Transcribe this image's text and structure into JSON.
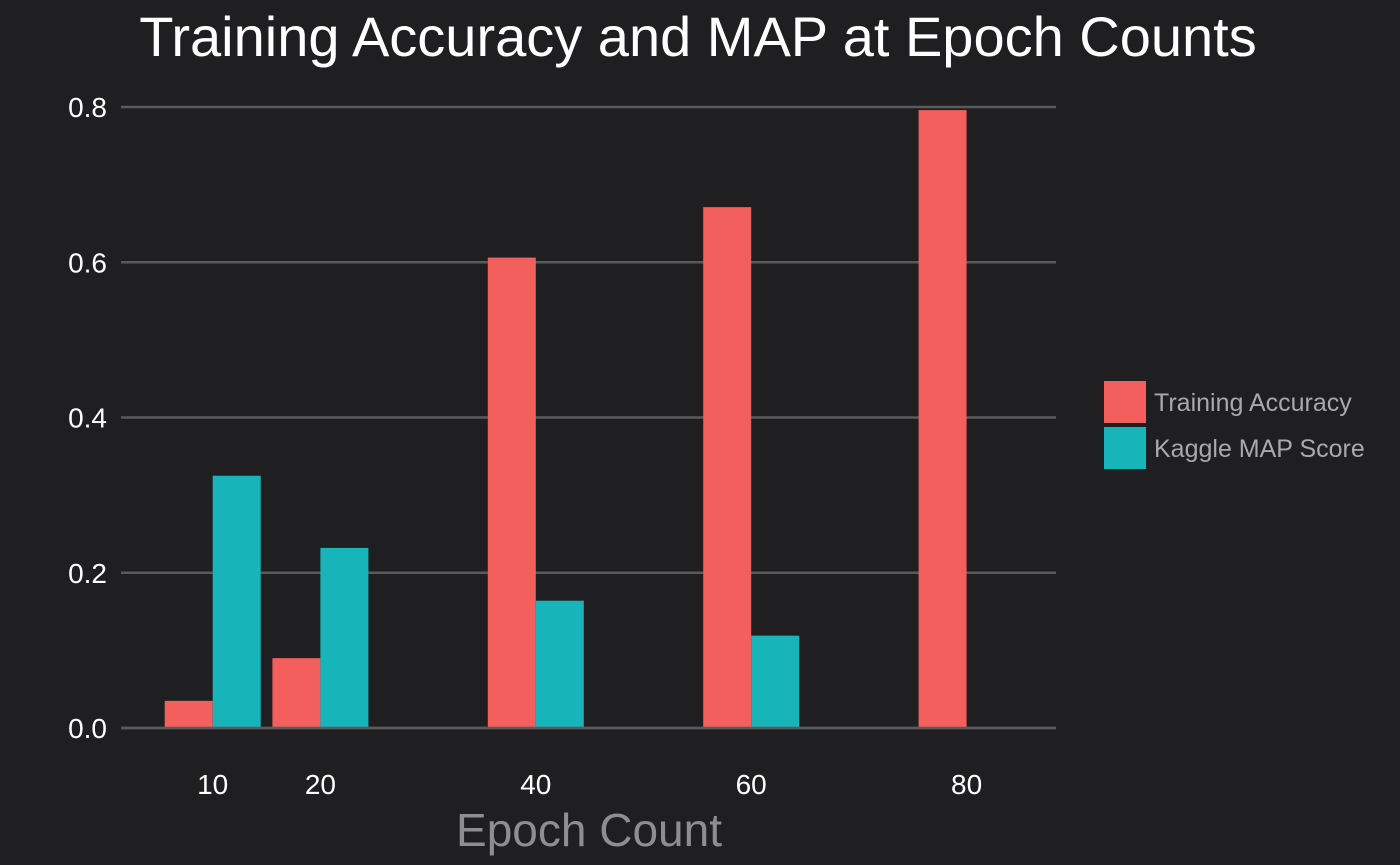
{
  "chart_data": {
    "type": "bar",
    "title": "Training Accuracy and MAP at Epoch Counts",
    "xlabel": "Epoch Count",
    "ylabel": "",
    "x": [
      10,
      20,
      40,
      60,
      80
    ],
    "x_tick_labels": [
      "10",
      "20",
      "40",
      "60",
      "80"
    ],
    "xlim": [
      0,
      90
    ],
    "ylim": [
      0,
      0.8
    ],
    "y_ticks": [
      0.0,
      0.2,
      0.4,
      0.6,
      0.8
    ],
    "y_tick_labels": [
      "0.0",
      "0.2",
      "0.4",
      "0.6",
      "0.8"
    ],
    "grid": true,
    "legend_position": "right",
    "series": [
      {
        "name": "Training Accuracy",
        "color": "#f35f5c",
        "values": [
          0.035,
          0.09,
          0.606,
          0.671,
          0.796
        ]
      },
      {
        "name": "Kaggle MAP Score",
        "color": "#17b4ba",
        "values": [
          0.325,
          0.232,
          0.164,
          0.119,
          null
        ]
      }
    ]
  }
}
